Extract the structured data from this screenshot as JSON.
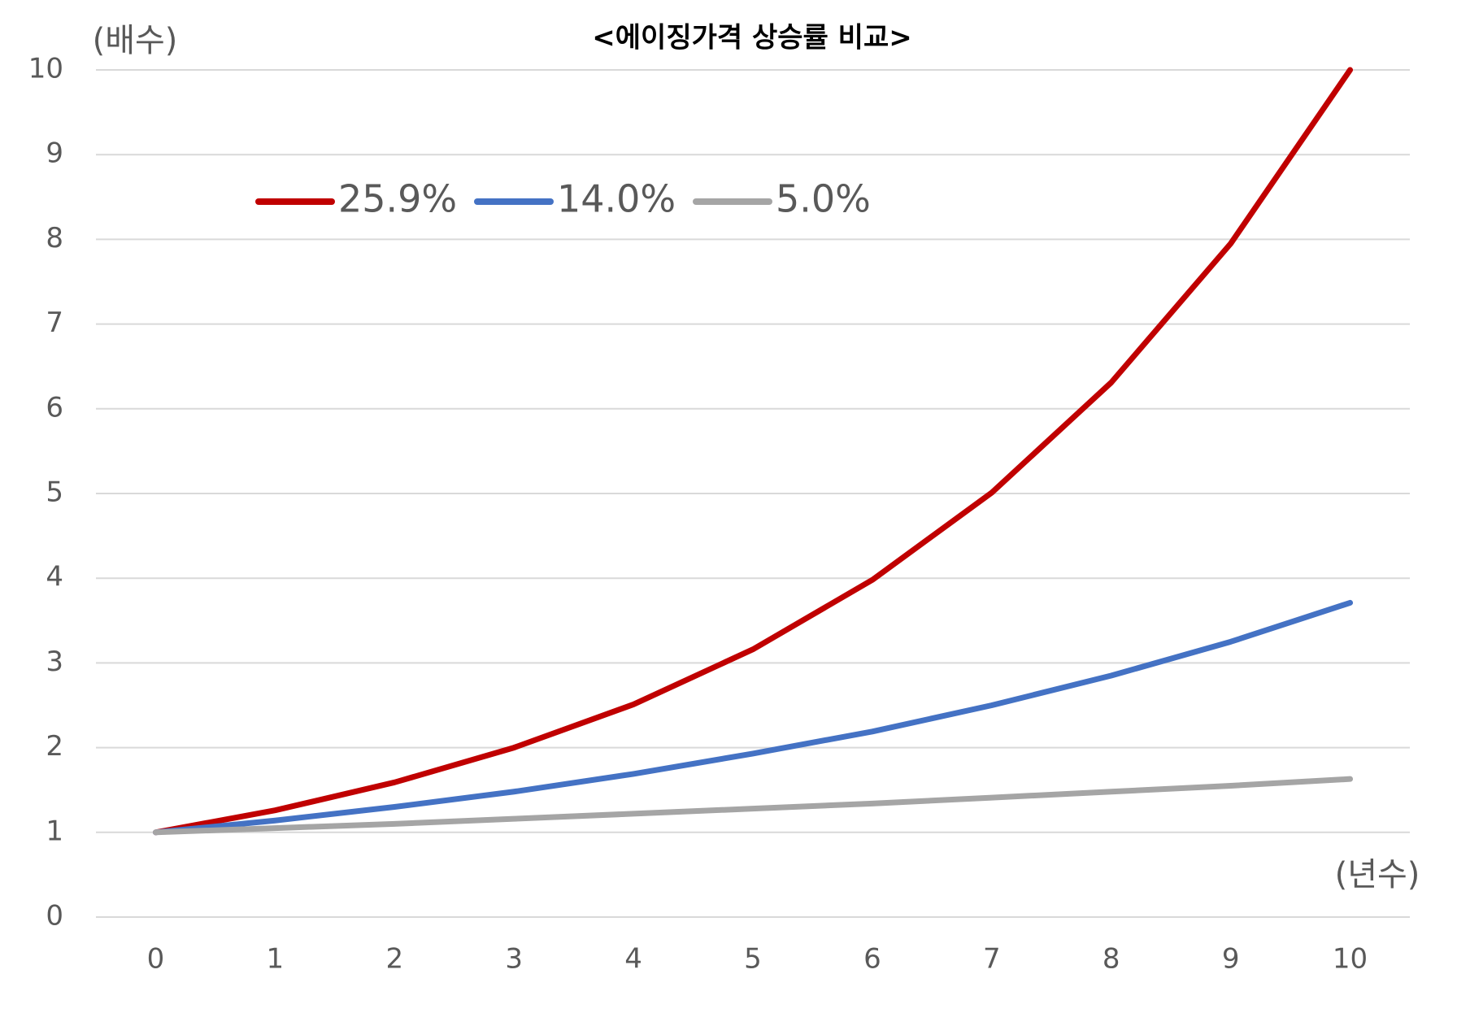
{
  "chart_data": {
    "type": "line",
    "title": "<에이징가격 상승률 비교>",
    "y_label": "(배수)",
    "x_label": "(년수)",
    "categories": [
      0,
      1,
      2,
      3,
      4,
      5,
      6,
      7,
      8,
      9,
      10
    ],
    "series": [
      {
        "name": "25.9%",
        "color": "#c00000",
        "values": [
          1,
          1.26,
          1.59,
          2.0,
          2.51,
          3.16,
          3.98,
          5.01,
          6.31,
          7.95,
          10.0
        ]
      },
      {
        "name": "14.0%",
        "color": "#4472c4",
        "values": [
          1,
          1.14,
          1.3,
          1.48,
          1.69,
          1.93,
          2.19,
          2.5,
          2.85,
          3.25,
          3.71
        ]
      },
      {
        "name": "5.0%",
        "color": "#a5a5a5",
        "values": [
          1,
          1.05,
          1.1,
          1.16,
          1.22,
          1.28,
          1.34,
          1.41,
          1.48,
          1.55,
          1.63
        ]
      }
    ],
    "ylim": [
      0,
      10
    ],
    "yticks": [
      0,
      1,
      2,
      3,
      4,
      5,
      6,
      7,
      8,
      9,
      10
    ],
    "grid": true,
    "legend": "top-left"
  }
}
